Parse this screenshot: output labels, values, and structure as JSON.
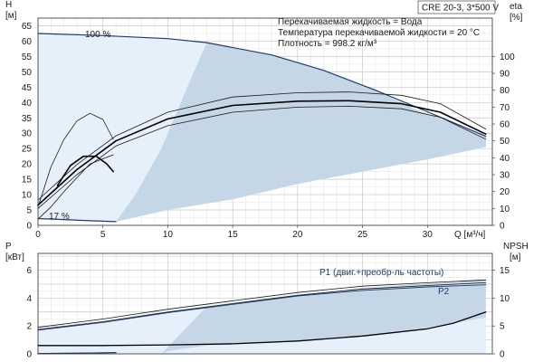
{
  "chart_data": [
    {
      "type": "line",
      "title": "CRE 20-3, 3*500 V",
      "info_lines": [
        "Перекачиваемая жидкость = Вода",
        "Температура перекачиваемой жидкости = 20 °C",
        "Плотность = 998.2 кг/м³"
      ],
      "xlabel": "Q [м³/ч]",
      "ylabel_left_unit": "H",
      "ylabel_left_dim": "[м]",
      "ylabel_right_unit": "eta",
      "ylabel_right_dim": "[%]",
      "xlim": [
        0,
        35
      ],
      "ylim_left": [
        0,
        67.5
      ],
      "ylim_right": [
        0,
        122.7
      ],
      "x_ticks": [
        0,
        5,
        10,
        15,
        20,
        25,
        30
      ],
      "y_ticks_left": [
        0,
        5,
        10,
        15,
        20,
        25,
        30,
        35,
        40,
        45,
        50,
        55,
        60,
        65
      ],
      "y_ticks_right": [
        0,
        10,
        20,
        30,
        40,
        50,
        60,
        70,
        80,
        90,
        100
      ],
      "grid": true,
      "annotations": [
        {
          "text": "100 %",
          "x": 5,
          "y": 63
        },
        {
          "text": "17 %",
          "x": 1.7,
          "y": 2.5
        }
      ],
      "regions": [
        {
          "name": "operating-range",
          "points": [
            [
              0,
              62.5
            ],
            [
              5,
              61.8
            ],
            [
              10,
              60.8
            ],
            [
              13,
              59.5
            ],
            [
              18,
              55.5
            ],
            [
              22,
              50.5
            ],
            [
              26,
              44
            ],
            [
              29,
              38
            ],
            [
              34.5,
              29
            ],
            [
              34.5,
              25.5
            ],
            [
              30,
              21.5
            ],
            [
              25,
              17.5
            ],
            [
              20,
              13.5
            ],
            [
              15,
              8.5
            ],
            [
              10,
              5
            ],
            [
              6,
              1.2
            ],
            [
              0,
              2.2
            ]
          ]
        },
        {
          "name": "shaded-wedge",
          "points": [
            [
              13,
              59.5
            ],
            [
              18,
              55.5
            ],
            [
              22,
              50.5
            ],
            [
              26,
              44
            ],
            [
              29,
              38
            ],
            [
              34.5,
              29
            ],
            [
              34.5,
              25.5
            ],
            [
              30,
              21.5
            ],
            [
              25,
              17.5
            ],
            [
              20,
              13.5
            ],
            [
              15,
              8.5
            ],
            [
              10,
              5
            ],
            [
              6,
              1.2
            ],
            [
              7.5,
              10
            ],
            [
              9.5,
              25
            ],
            [
              11.5,
              45
            ]
          ]
        }
      ],
      "series": [
        {
          "role": "head-100",
          "x": [
            0,
            5,
            10,
            13,
            18,
            22,
            26,
            30,
            34.5
          ],
          "y": [
            62.5,
            61.8,
            60.8,
            59.5,
            55.5,
            50.5,
            44,
            37,
            29
          ]
        },
        {
          "role": "head-17",
          "x": [
            0,
            2,
            4,
            6
          ],
          "y": [
            2.2,
            1.9,
            1.5,
            1.2
          ]
        },
        {
          "role": "efficiency-upper",
          "x": [
            0,
            3,
            6,
            10,
            15,
            20,
            24,
            28,
            31,
            34.5
          ],
          "y": [
            15,
            36,
            53,
            67,
            76,
            78.5,
            79,
            77,
            72,
            57
          ]
        },
        {
          "role": "efficiency-main",
          "x": [
            0,
            3,
            6,
            10,
            15,
            20,
            24,
            28,
            31,
            34.5
          ],
          "y": [
            12,
            33,
            50,
            63,
            71,
            73.5,
            73.8,
            72,
            67,
            54
          ]
        },
        {
          "role": "efficiency-lower",
          "x": [
            0,
            3,
            6,
            10,
            15,
            20,
            24,
            28,
            31,
            34.5
          ],
          "y": [
            10,
            30,
            47,
            59,
            67,
            70,
            70.5,
            69,
            64,
            51
          ]
        },
        {
          "role": "small-upper",
          "x": [
            0,
            1,
            2,
            3,
            4,
            5,
            5.8
          ],
          "y": [
            6,
            19,
            28,
            34,
            36.5,
            34.5,
            28
          ]
        },
        {
          "role": "small-mid",
          "x": [
            1.5,
            2.5,
            3.5,
            4.5,
            5.3,
            5.8
          ],
          "y": [
            13,
            19.5,
            22.5,
            22.5,
            20,
            17.5
          ]
        },
        {
          "role": "small-low",
          "x": [
            0,
            1,
            2,
            3,
            4,
            5.8
          ],
          "y": [
            2,
            6,
            11,
            15.5,
            20,
            23
          ]
        }
      ]
    },
    {
      "type": "line",
      "xlim": [
        0,
        35
      ],
      "ylim_left": [
        0,
        7.2
      ],
      "ylim_right": [
        0,
        18
      ],
      "ylabel_left_unit": "P",
      "ylabel_left_dim": "[кВт]",
      "ylabel_right_unit": "NPSH",
      "ylabel_right_dim": "[м]",
      "y_ticks_left": [
        0,
        2,
        4,
        6
      ],
      "y_ticks_right": [
        0,
        5,
        10,
        15
      ],
      "grid": true,
      "regions": [
        {
          "name": "power-band-light",
          "points": [
            [
              0,
              1.8
            ],
            [
              5,
              2.4
            ],
            [
              10,
              3.1
            ],
            [
              15,
              3.7
            ],
            [
              20,
              4.3
            ],
            [
              25,
              4.75
            ],
            [
              30,
              5.05
            ],
            [
              34.5,
              5.3
            ],
            [
              34.5,
              0
            ],
            [
              0,
              0
            ]
          ]
        },
        {
          "name": "power-band-wedge",
          "points": [
            [
              13,
              3.4
            ],
            [
              18,
              4.0
            ],
            [
              24,
              4.6
            ],
            [
              30,
              5.05
            ],
            [
              34.5,
              5.3
            ],
            [
              34.5,
              2.6
            ],
            [
              30,
              1.9
            ],
            [
              24,
              1.2
            ],
            [
              18,
              0.8
            ],
            [
              13,
              0.6
            ],
            [
              10,
              0.2
            ],
            [
              9.5,
              0
            ]
          ]
        }
      ],
      "series": [
        {
          "name": "P1 (двиг.+преобр-ль частоты)",
          "x": [
            0,
            5,
            10,
            15,
            20,
            25,
            30,
            34.5
          ],
          "y": [
            1.9,
            2.5,
            3.2,
            3.8,
            4.4,
            4.85,
            5.1,
            5.3
          ]
        },
        {
          "role": "P1-lower",
          "x": [
            0,
            5,
            10,
            15,
            20,
            25,
            30,
            34.5
          ],
          "y": [
            1.75,
            2.3,
            3.0,
            3.6,
            4.2,
            4.65,
            4.9,
            5.1
          ]
        },
        {
          "name": "P2",
          "x": [
            0,
            5,
            10,
            15,
            20,
            25,
            30,
            34.5
          ],
          "y": [
            1.7,
            2.25,
            2.95,
            3.55,
            4.15,
            4.55,
            4.8,
            4.95
          ]
        },
        {
          "role": "NPSH",
          "axis": "right",
          "x": [
            0,
            5,
            10,
            15,
            20,
            25,
            30,
            32,
            34.5
          ],
          "y": [
            1.5,
            1.5,
            1.6,
            1.8,
            2.3,
            3.2,
            4.5,
            5.5,
            7.5
          ]
        },
        {
          "role": "power-17",
          "x": [
            0,
            2,
            4,
            6
          ],
          "y": [
            0.02,
            0.04,
            0.06,
            0.09
          ]
        }
      ]
    }
  ]
}
